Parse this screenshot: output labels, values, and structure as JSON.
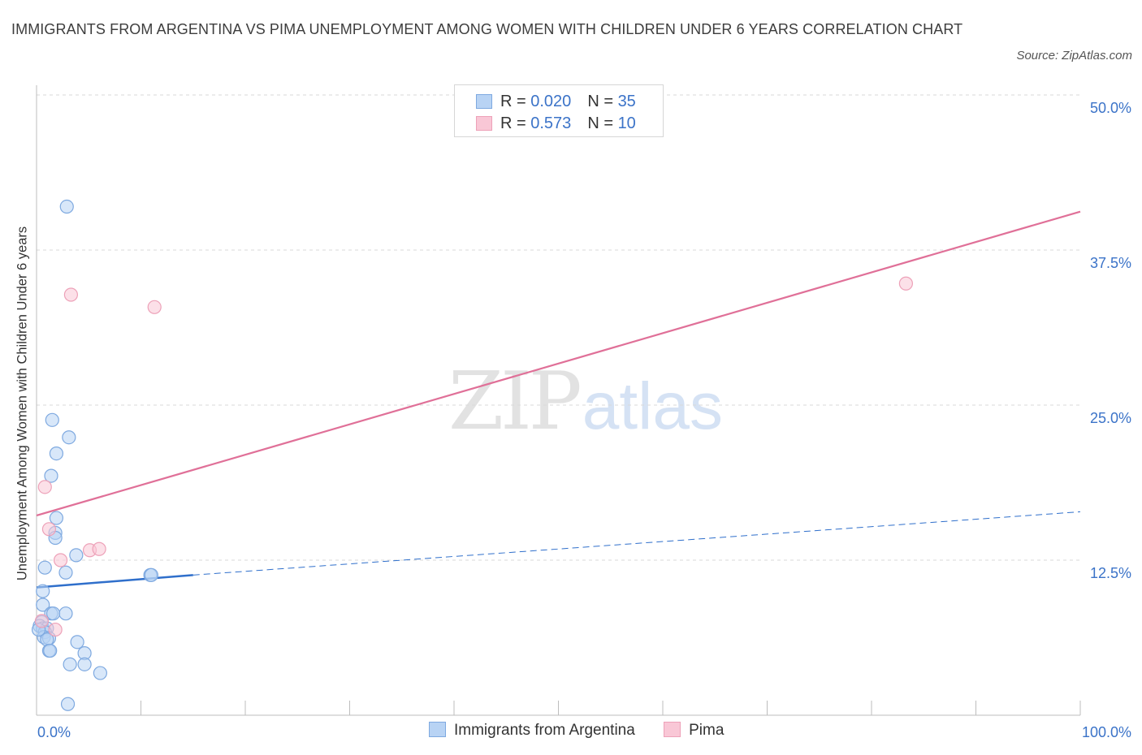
{
  "title": "IMMIGRANTS FROM ARGENTINA VS PIMA UNEMPLOYMENT AMONG WOMEN WITH CHILDREN UNDER 6 YEARS CORRELATION CHART",
  "source": "Source: ZipAtlas.com",
  "watermark": {
    "zip": "ZIP",
    "atlas": "atlas"
  },
  "legend_top": [
    {
      "r_label": "R = ",
      "r_value": "0.020",
      "n_label": "N = ",
      "n_value": "35"
    },
    {
      "r_label": "R = ",
      "r_value": " 0.573",
      "n_label": "N = ",
      "n_value": "10"
    }
  ],
  "legend_bottom": [
    "Immigrants from Argentina",
    "Pima"
  ],
  "colors": {
    "blue_fill": "#b8d3f4",
    "blue_stroke": "#7ea9e0",
    "blue_line": "#2f6fcb",
    "pink_fill": "#f9c7d6",
    "pink_stroke": "#eda1b8",
    "pink_line": "#e07098",
    "tick_label": "#3b73c8",
    "grid": "#d9d9d9"
  },
  "chart_data": {
    "type": "scatter",
    "title": "IMMIGRANTS FROM ARGENTINA VS PIMA UNEMPLOYMENT AMONG WOMEN WITH CHILDREN UNDER 6 YEARS CORRELATION CHART",
    "xlabel": "",
    "ylabel": "Unemployment Among Women with Children Under 6 years",
    "xlim": [
      0,
      100
    ],
    "ylim": [
      0,
      50
    ],
    "x_tick_labels": [
      "0.0%",
      "100.0%"
    ],
    "y_ticks": [
      12.5,
      25.0,
      37.5,
      50.0
    ],
    "y_tick_labels": [
      "12.5%",
      "25.0%",
      "37.5%",
      "50.0%"
    ],
    "grid": true,
    "legend_position": "top-center",
    "series": [
      {
        "name": "Immigrants from Argentina",
        "color": "blue",
        "R": 0.02,
        "N": 35,
        "points": [
          [
            2.9,
            41.0
          ],
          [
            1.5,
            23.8
          ],
          [
            3.1,
            22.4
          ],
          [
            1.9,
            21.1
          ],
          [
            1.4,
            19.3
          ],
          [
            1.9,
            15.9
          ],
          [
            1.8,
            14.7
          ],
          [
            1.8,
            14.3
          ],
          [
            3.8,
            12.9
          ],
          [
            0.8,
            11.9
          ],
          [
            2.8,
            11.5
          ],
          [
            10.9,
            11.3
          ],
          [
            11.0,
            11.3
          ],
          [
            0.6,
            10.0
          ],
          [
            0.6,
            8.9
          ],
          [
            1.4,
            8.2
          ],
          [
            1.6,
            8.2
          ],
          [
            2.8,
            8.2
          ],
          [
            0.5,
            7.5
          ],
          [
            0.3,
            7.2
          ],
          [
            0.6,
            7.0
          ],
          [
            1.0,
            7.0
          ],
          [
            0.8,
            6.7
          ],
          [
            0.7,
            6.3
          ],
          [
            1.2,
            6.2
          ],
          [
            1.0,
            6.1
          ],
          [
            3.9,
            5.9
          ],
          [
            1.2,
            5.2
          ],
          [
            1.3,
            5.2
          ],
          [
            4.6,
            5.0
          ],
          [
            3.2,
            4.1
          ],
          [
            4.6,
            4.1
          ],
          [
            6.1,
            3.4
          ],
          [
            3.0,
            0.9
          ],
          [
            0.2,
            6.9
          ]
        ],
        "trend": {
          "x": [
            0,
            15
          ],
          "y": [
            10.3,
            11.3
          ],
          "extended_x": [
            15,
            100
          ],
          "extended_y": [
            11.3,
            16.4
          ]
        }
      },
      {
        "name": "Pima",
        "color": "pink",
        "R": 0.573,
        "N": 10,
        "points": [
          [
            3.3,
            33.9
          ],
          [
            11.3,
            32.9
          ],
          [
            83.3,
            34.8
          ],
          [
            0.8,
            18.4
          ],
          [
            1.2,
            15.0
          ],
          [
            2.3,
            12.5
          ],
          [
            5.1,
            13.3
          ],
          [
            6.0,
            13.4
          ],
          [
            0.5,
            7.6
          ],
          [
            1.8,
            6.9
          ]
        ],
        "trend": {
          "x": [
            0,
            100
          ],
          "y": [
            16.1,
            40.6
          ]
        }
      }
    ]
  }
}
